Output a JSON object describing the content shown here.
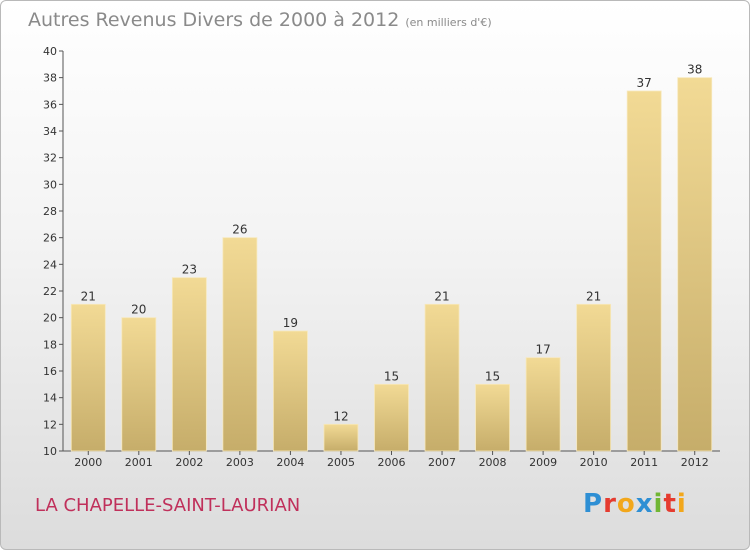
{
  "header": {
    "title": "Autres Revenus Divers de 2000 à 2012",
    "unit": "(en milliers d'€)"
  },
  "footer": {
    "commune": "LA CHAPELLE-SAINT-LAURIAN",
    "logo_letters": [
      "P",
      "r",
      "o",
      "x",
      "i",
      "t",
      "i"
    ]
  },
  "colors": {
    "bar_light": "#f2da95",
    "bar_dark": "#c6ad6a",
    "commune": "#c0305b",
    "logo": [
      "#2e8fd4",
      "#e53b2f",
      "#f2a71b",
      "#2e8fd4",
      "#71b634",
      "#e53b2f",
      "#f2a71b"
    ]
  },
  "chart_data": {
    "type": "bar",
    "categories": [
      "2000",
      "2001",
      "2002",
      "2003",
      "2004",
      "2005",
      "2006",
      "2007",
      "2008",
      "2009",
      "2010",
      "2011",
      "2012"
    ],
    "values": [
      21,
      20,
      23,
      26,
      19,
      12,
      15,
      21,
      15,
      17,
      21,
      37,
      38
    ],
    "title": "Autres Revenus Divers de 2000 à 2012",
    "ylim": [
      10,
      40
    ],
    "yticks": [
      10,
      12,
      14,
      16,
      18,
      20,
      22,
      24,
      26,
      28,
      30,
      32,
      34,
      36,
      38,
      40
    ],
    "grid": false,
    "data_labels": true
  }
}
